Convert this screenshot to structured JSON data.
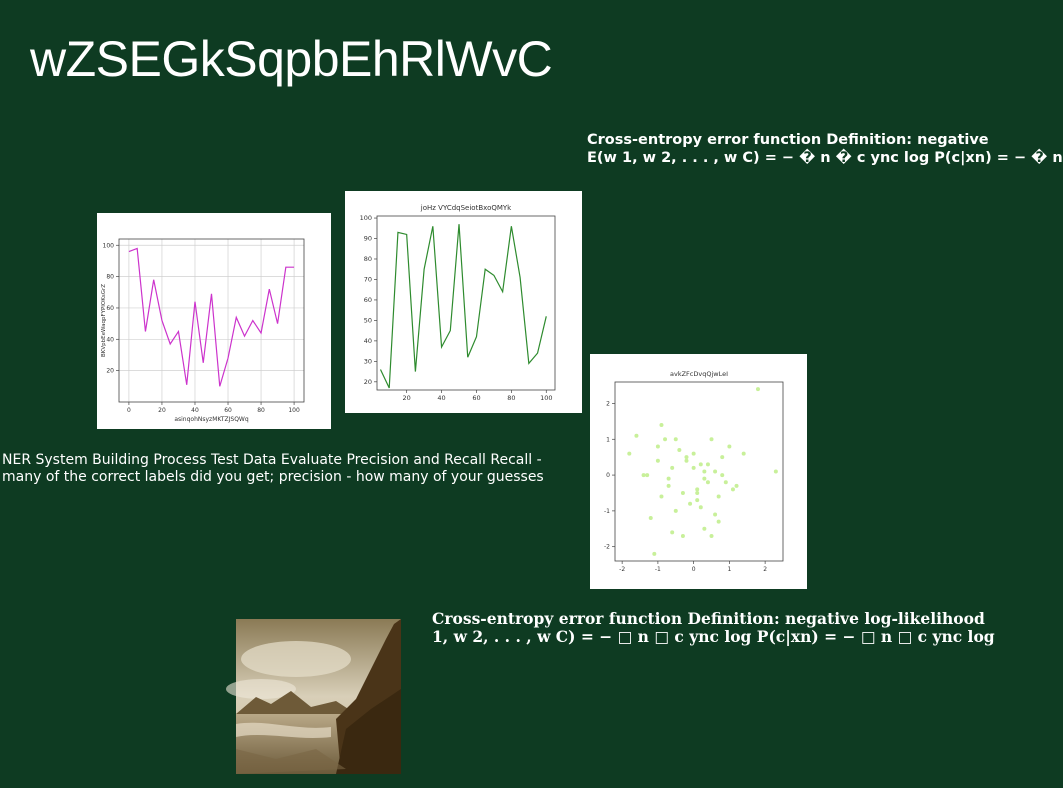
{
  "title": "wZSEGkSqpbEhRlWvC",
  "text_top_right": {
    "line1": "Cross-entropy error function Definition: negative",
    "line2": "E(w 1, w 2, . . . , w C) = − � n � c ync log P(c|xn) = − � n"
  },
  "text_middle": "NER System Building Process Test Data Evaluate Precision and Recall Recall - many of the correct labels did you get; precision - how many of your guesses",
  "text_bottom_right": {
    "line1": "Cross-entropy error function Definition: negative log-likelihood",
    "line2": "1, w 2, . . . , w C) = − □ n □ c ync log P(c|xn) = − □ n □ c ync log"
  },
  "photo": {
    "description_icon": "mountain-lake-sepia-photo"
  },
  "chart_data": [
    {
      "type": "line",
      "title": "",
      "xlabel": "asinqohNsyzMKTZJSQWq",
      "ylabel": "BKVpbEeWaqpFYPIOKsGrZ",
      "color": "#cc33cc",
      "grid": true,
      "xlim": [
        -6,
        106
      ],
      "ylim": [
        0,
        104
      ],
      "xticks": [
        0,
        20,
        40,
        60,
        80,
        100
      ],
      "yticks": [
        20,
        40,
        60,
        80,
        100
      ],
      "x": [
        0,
        5,
        10,
        15,
        20,
        25,
        30,
        35,
        40,
        45,
        50,
        55,
        60,
        65,
        70,
        75,
        80,
        85,
        90,
        95,
        100
      ],
      "y": [
        96,
        98,
        45,
        78,
        52,
        37,
        45,
        11,
        64,
        25,
        69,
        10,
        28,
        54,
        42,
        52,
        44,
        72,
        50,
        86,
        86
      ]
    },
    {
      "type": "line",
      "title": "joHz VYCdqSeiotBxoQMYk",
      "xlabel": "",
      "ylabel": "",
      "color": "#2e8b2e",
      "grid": false,
      "xlim": [
        3,
        105
      ],
      "ylim": [
        16,
        101
      ],
      "xticks": [
        20,
        40,
        60,
        80,
        100
      ],
      "yticks": [
        20,
        30,
        40,
        50,
        60,
        70,
        80,
        90,
        100
      ],
      "x": [
        5,
        10,
        15,
        20,
        25,
        30,
        35,
        40,
        45,
        50,
        55,
        60,
        65,
        70,
        75,
        80,
        85,
        90,
        95,
        100
      ],
      "y": [
        26,
        17,
        93,
        92,
        25,
        75,
        96,
        37,
        45,
        97,
        32,
        42,
        75,
        72,
        64,
        96,
        71,
        29,
        34,
        52
      ]
    },
    {
      "type": "scatter",
      "title": "avkZFcDvqQjwLeI",
      "xlabel": "",
      "ylabel": "",
      "color": "#c8f09a",
      "grid": false,
      "xlim": [
        -2.2,
        2.5
      ],
      "ylim": [
        -2.4,
        2.6
      ],
      "xticks": [
        -2,
        -1,
        0,
        1,
        2
      ],
      "yticks": [
        -2,
        -1,
        0,
        1,
        2
      ],
      "x": [
        -1.8,
        -1.6,
        -1.4,
        -1.2,
        -1.1,
        -1.0,
        -0.9,
        -0.8,
        -0.7,
        -0.6,
        -0.5,
        -0.4,
        -0.3,
        -0.2,
        -0.1,
        0.0,
        0.1,
        0.2,
        0.3,
        0.4,
        0.5,
        0.6,
        0.7,
        0.8,
        1.0,
        1.2,
        1.4,
        1.8,
        2.3,
        -0.5,
        -0.3,
        0.1,
        0.3,
        0.6,
        0.9,
        -1.3,
        -0.9,
        -0.6,
        0.2,
        0.4,
        0.7,
        -0.2,
        0.0,
        0.5,
        1.1,
        -1.0,
        0.3,
        0.8,
        -0.7,
        0.1
      ],
      "y": [
        0.6,
        1.1,
        0.0,
        -1.2,
        -2.2,
        0.8,
        1.4,
        1.0,
        -0.3,
        0.2,
        -1.0,
        0.7,
        -0.5,
        0.4,
        -0.8,
        0.6,
        -0.4,
        0.3,
        -1.5,
        -0.2,
        1.0,
        0.1,
        -0.6,
        0.5,
        0.8,
        -0.3,
        0.6,
        2.4,
        0.1,
        1.0,
        -1.7,
        -0.5,
        -0.1,
        -1.1,
        -0.2,
        0.0,
        -0.6,
        -1.6,
        -0.9,
        0.3,
        -1.3,
        0.5,
        0.2,
        -1.7,
        -0.4,
        0.4,
        0.1,
        0.0,
        -0.1,
        -0.7
      ]
    }
  ]
}
